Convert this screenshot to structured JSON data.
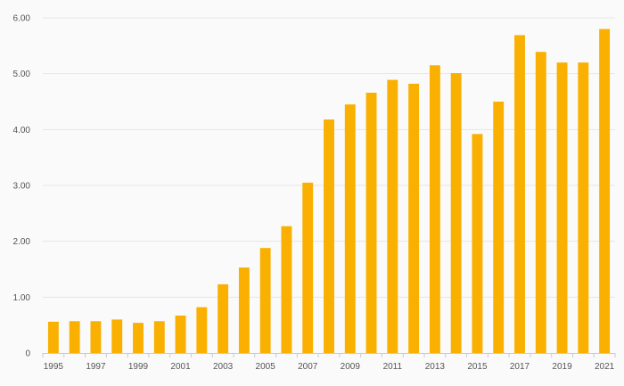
{
  "chart_data": {
    "type": "bar",
    "title": "",
    "xlabel": "",
    "ylabel": "",
    "ylim": [
      0,
      6
    ],
    "grid": true,
    "legend": "none",
    "y_ticks": [
      "0",
      "1.00",
      "2.00",
      "3.00",
      "4.00",
      "5.00",
      "6.00"
    ],
    "x_tick_labels": [
      "1995",
      "1997",
      "1999",
      "2001",
      "2003",
      "2005",
      "2007",
      "2009",
      "2011",
      "2013",
      "2015",
      "2017",
      "2019",
      "2021"
    ],
    "categories": [
      "1995",
      "1996",
      "1997",
      "1998",
      "1999",
      "2000",
      "2001",
      "2002",
      "2003",
      "2004",
      "2005",
      "2006",
      "2007",
      "2008",
      "2009",
      "2010",
      "2011",
      "2012",
      "2013",
      "2014",
      "2015",
      "2016",
      "2017",
      "2018",
      "2019",
      "2020",
      "2021"
    ],
    "values": [
      0.56,
      0.57,
      0.57,
      0.6,
      0.54,
      0.57,
      0.67,
      0.82,
      1.23,
      1.53,
      1.88,
      2.27,
      3.05,
      4.18,
      4.45,
      4.66,
      4.89,
      4.82,
      5.15,
      5.01,
      3.92,
      4.5,
      5.69,
      5.39,
      5.2,
      5.2,
      5.8
    ],
    "colors": {
      "bar": "#f9b000",
      "grid": "#e6e6e6",
      "axis": "#cccccc",
      "background": "#fafafa"
    }
  }
}
